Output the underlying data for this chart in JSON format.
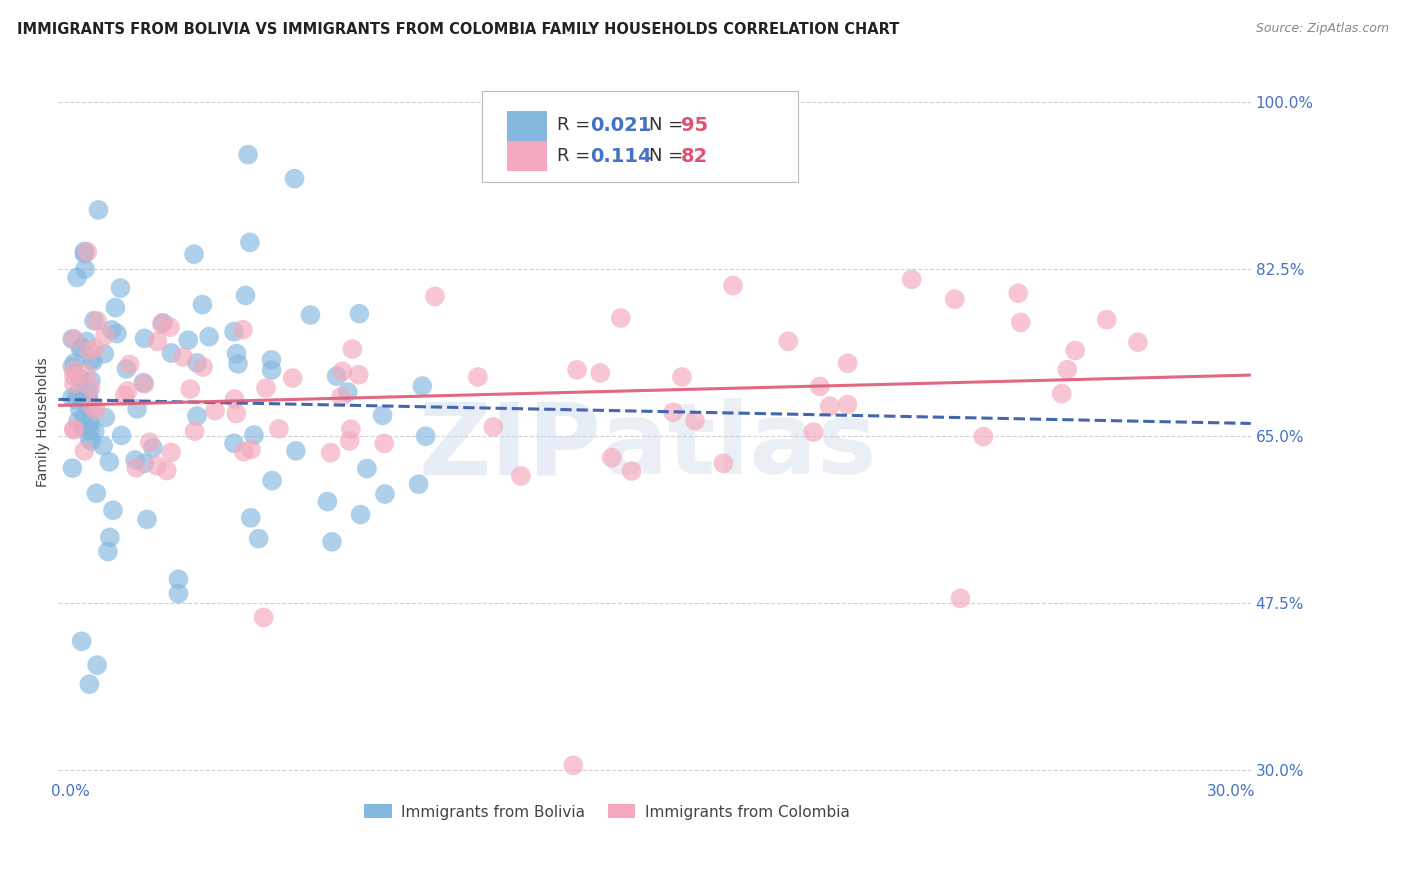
{
  "title": "IMMIGRANTS FROM BOLIVIA VS IMMIGRANTS FROM COLOMBIA FAMILY HOUSEHOLDS CORRELATION CHART",
  "source": "Source: ZipAtlas.com",
  "ylabel": "Family Households",
  "xlim": [
    -0.003,
    0.305
  ],
  "ylim": [
    0.29,
    1.04
  ],
  "ytick_labels_right": [
    "100.0%",
    "82.5%",
    "65.0%",
    "47.5%",
    "30.0%"
  ],
  "ytick_positions_right": [
    1.0,
    0.825,
    0.65,
    0.475,
    0.3
  ],
  "bolivia_color": "#85b8df",
  "colombia_color": "#f4a8bb",
  "bolivia_line_color": "#3a5fa8",
  "colombia_line_color": "#e0607a",
  "grid_color": "#cccccc",
  "background_color": "#ffffff",
  "title_fontsize": 10.5,
  "source_fontsize": 9,
  "axis_label_fontsize": 10,
  "tick_fontsize": 11,
  "legend_fontsize": 14
}
